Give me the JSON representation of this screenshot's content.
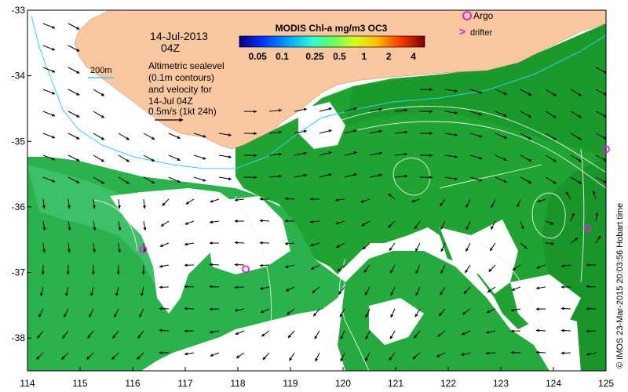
{
  "map": {
    "date": "14-Jul-2013",
    "time": "04Z",
    "bathy_label": "200m",
    "desc_lines": [
      "Altimetric sealevel",
      "(0.1m contours)",
      "and velocity for",
      "14-Jul 04Z",
      "0.5m/s (1kt 24h)"
    ],
    "colorbar_title": "MODIS Chl-a mg/m3 OC3",
    "colorbar_ticks": [
      "0.05",
      "0.1",
      "0.25",
      "0.5",
      "1",
      "2",
      "4"
    ],
    "legend_argo": "Argo",
    "legend_drifter": "drifter",
    "credit": "© IMOS 23-Mar-2015 20:03:56 Hobart time",
    "x_ticks": [
      "114",
      "115",
      "116",
      "117",
      "118",
      "119",
      "120",
      "121",
      "122",
      "123",
      "124",
      "125"
    ],
    "y_ticks": [
      "-33",
      "-34",
      "-35",
      "-36",
      "-37",
      "-38"
    ],
    "lon_range": [
      114,
      125
    ],
    "lat_range": [
      -33,
      -38.5
    ],
    "colors": {
      "land": "#fac8a0",
      "chl_low": "#2fbf5a",
      "chl_high": "#1e9e28",
      "contour": "#e8f4e8",
      "arrow": "#000000",
      "argo": "#e020e0",
      "bathy": "#30d0f0"
    },
    "argo_floats": [
      {
        "lon": 116.2,
        "lat": -36.65
      },
      {
        "lon": 118.15,
        "lat": -36.95
      },
      {
        "lon": 124.65,
        "lat": -36.33
      },
      {
        "lon": 125.0,
        "lat": -35.12
      }
    ]
  }
}
